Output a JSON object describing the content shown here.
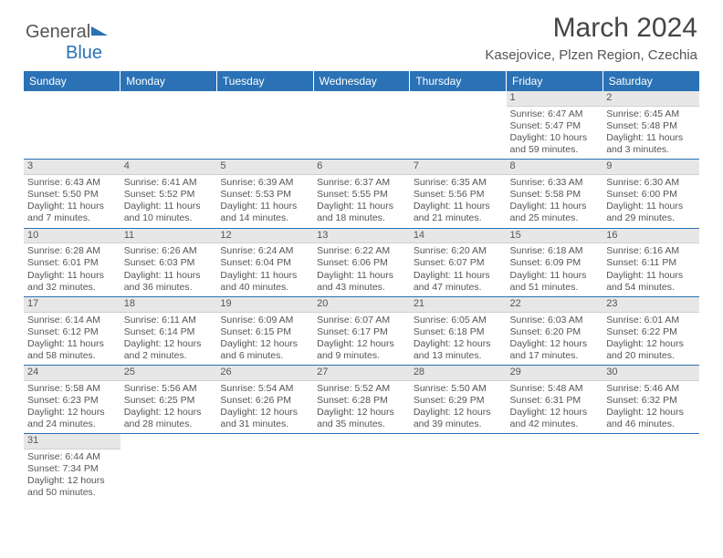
{
  "logo": {
    "text1": "General",
    "text2": "Blue"
  },
  "title": "March 2024",
  "location": "Kasejovice, Plzen Region, Czechia",
  "colors": {
    "header_bg": "#2a72b5",
    "header_text": "#ffffff",
    "daynum_bg": "#e7e7e7",
    "text": "#555555",
    "rule": "#2a72b5"
  },
  "weekdays": [
    "Sunday",
    "Monday",
    "Tuesday",
    "Wednesday",
    "Thursday",
    "Friday",
    "Saturday"
  ],
  "weeks": [
    [
      null,
      null,
      null,
      null,
      null,
      {
        "n": "1",
        "sunrise": "6:47 AM",
        "sunset": "5:47 PM",
        "daylight": "10 hours and 59 minutes."
      },
      {
        "n": "2",
        "sunrise": "6:45 AM",
        "sunset": "5:48 PM",
        "daylight": "11 hours and 3 minutes."
      }
    ],
    [
      {
        "n": "3",
        "sunrise": "6:43 AM",
        "sunset": "5:50 PM",
        "daylight": "11 hours and 7 minutes."
      },
      {
        "n": "4",
        "sunrise": "6:41 AM",
        "sunset": "5:52 PM",
        "daylight": "11 hours and 10 minutes."
      },
      {
        "n": "5",
        "sunrise": "6:39 AM",
        "sunset": "5:53 PM",
        "daylight": "11 hours and 14 minutes."
      },
      {
        "n": "6",
        "sunrise": "6:37 AM",
        "sunset": "5:55 PM",
        "daylight": "11 hours and 18 minutes."
      },
      {
        "n": "7",
        "sunrise": "6:35 AM",
        "sunset": "5:56 PM",
        "daylight": "11 hours and 21 minutes."
      },
      {
        "n": "8",
        "sunrise": "6:33 AM",
        "sunset": "5:58 PM",
        "daylight": "11 hours and 25 minutes."
      },
      {
        "n": "9",
        "sunrise": "6:30 AM",
        "sunset": "6:00 PM",
        "daylight": "11 hours and 29 minutes."
      }
    ],
    [
      {
        "n": "10",
        "sunrise": "6:28 AM",
        "sunset": "6:01 PM",
        "daylight": "11 hours and 32 minutes."
      },
      {
        "n": "11",
        "sunrise": "6:26 AM",
        "sunset": "6:03 PM",
        "daylight": "11 hours and 36 minutes."
      },
      {
        "n": "12",
        "sunrise": "6:24 AM",
        "sunset": "6:04 PM",
        "daylight": "11 hours and 40 minutes."
      },
      {
        "n": "13",
        "sunrise": "6:22 AM",
        "sunset": "6:06 PM",
        "daylight": "11 hours and 43 minutes."
      },
      {
        "n": "14",
        "sunrise": "6:20 AM",
        "sunset": "6:07 PM",
        "daylight": "11 hours and 47 minutes."
      },
      {
        "n": "15",
        "sunrise": "6:18 AM",
        "sunset": "6:09 PM",
        "daylight": "11 hours and 51 minutes."
      },
      {
        "n": "16",
        "sunrise": "6:16 AM",
        "sunset": "6:11 PM",
        "daylight": "11 hours and 54 minutes."
      }
    ],
    [
      {
        "n": "17",
        "sunrise": "6:14 AM",
        "sunset": "6:12 PM",
        "daylight": "11 hours and 58 minutes."
      },
      {
        "n": "18",
        "sunrise": "6:11 AM",
        "sunset": "6:14 PM",
        "daylight": "12 hours and 2 minutes."
      },
      {
        "n": "19",
        "sunrise": "6:09 AM",
        "sunset": "6:15 PM",
        "daylight": "12 hours and 6 minutes."
      },
      {
        "n": "20",
        "sunrise": "6:07 AM",
        "sunset": "6:17 PM",
        "daylight": "12 hours and 9 minutes."
      },
      {
        "n": "21",
        "sunrise": "6:05 AM",
        "sunset": "6:18 PM",
        "daylight": "12 hours and 13 minutes."
      },
      {
        "n": "22",
        "sunrise": "6:03 AM",
        "sunset": "6:20 PM",
        "daylight": "12 hours and 17 minutes."
      },
      {
        "n": "23",
        "sunrise": "6:01 AM",
        "sunset": "6:22 PM",
        "daylight": "12 hours and 20 minutes."
      }
    ],
    [
      {
        "n": "24",
        "sunrise": "5:58 AM",
        "sunset": "6:23 PM",
        "daylight": "12 hours and 24 minutes."
      },
      {
        "n": "25",
        "sunrise": "5:56 AM",
        "sunset": "6:25 PM",
        "daylight": "12 hours and 28 minutes."
      },
      {
        "n": "26",
        "sunrise": "5:54 AM",
        "sunset": "6:26 PM",
        "daylight": "12 hours and 31 minutes."
      },
      {
        "n": "27",
        "sunrise": "5:52 AM",
        "sunset": "6:28 PM",
        "daylight": "12 hours and 35 minutes."
      },
      {
        "n": "28",
        "sunrise": "5:50 AM",
        "sunset": "6:29 PM",
        "daylight": "12 hours and 39 minutes."
      },
      {
        "n": "29",
        "sunrise": "5:48 AM",
        "sunset": "6:31 PM",
        "daylight": "12 hours and 42 minutes."
      },
      {
        "n": "30",
        "sunrise": "5:46 AM",
        "sunset": "6:32 PM",
        "daylight": "12 hours and 46 minutes."
      }
    ],
    [
      {
        "n": "31",
        "sunrise": "6:44 AM",
        "sunset": "7:34 PM",
        "daylight": "12 hours and 50 minutes."
      },
      null,
      null,
      null,
      null,
      null,
      null
    ]
  ],
  "labels": {
    "sunrise": "Sunrise: ",
    "sunset": "Sunset: ",
    "daylight": "Daylight: "
  }
}
